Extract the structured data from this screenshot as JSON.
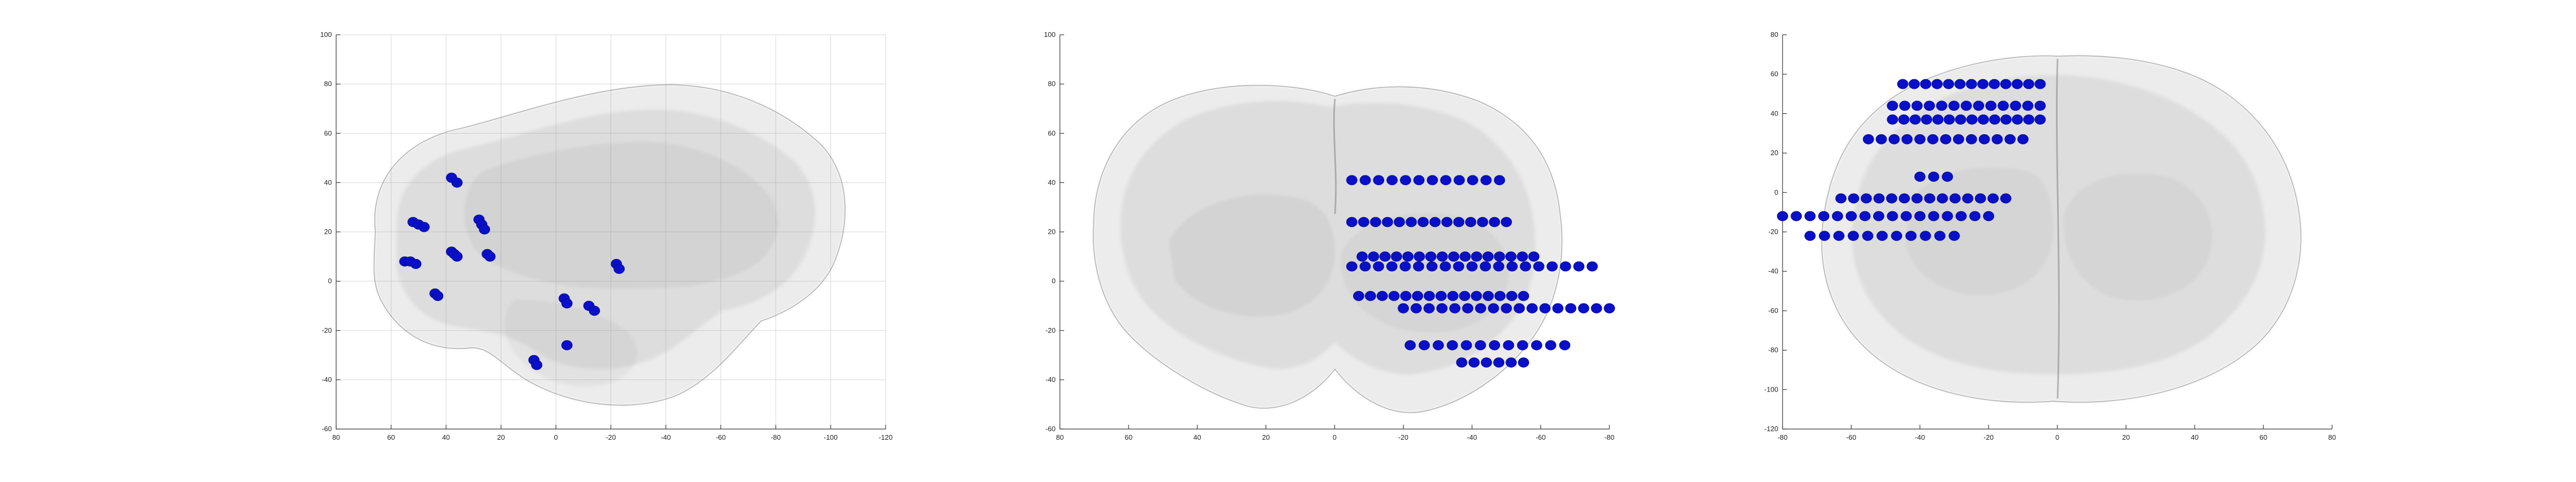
{
  "chart_data": [
    {
      "type": "scatter",
      "view": "sagittal",
      "title": "",
      "xlabel": "",
      "ylabel": "",
      "xlim": [
        80,
        -120
      ],
      "ylim": [
        -60,
        100
      ],
      "grid": true,
      "x_ticks": [
        "80",
        "60",
        "40",
        "20",
        "0",
        "-20",
        "-40",
        "-60",
        "-80",
        "-100",
        "-120"
      ],
      "y_ticks": [
        "100",
        "80",
        "60",
        "40",
        "20",
        "0",
        "-20",
        "-40",
        "-60"
      ],
      "marker_color": "#0a10c8",
      "background_color": "#a0a0a0",
      "points": [
        {
          "x": 38,
          "y": 42
        },
        {
          "x": 36,
          "y": 40
        },
        {
          "x": 52,
          "y": 24
        },
        {
          "x": 50,
          "y": 23
        },
        {
          "x": 48,
          "y": 22
        },
        {
          "x": 28,
          "y": 25
        },
        {
          "x": 27,
          "y": 23
        },
        {
          "x": 26,
          "y": 21
        },
        {
          "x": 55,
          "y": 8
        },
        {
          "x": 53,
          "y": 8
        },
        {
          "x": 51,
          "y": 7
        },
        {
          "x": 38,
          "y": 12
        },
        {
          "x": 37,
          "y": 11
        },
        {
          "x": 36,
          "y": 10
        },
        {
          "x": 25,
          "y": 11
        },
        {
          "x": 24,
          "y": 10
        },
        {
          "x": -22,
          "y": 7
        },
        {
          "x": -23,
          "y": 5
        },
        {
          "x": 44,
          "y": -5
        },
        {
          "x": 43,
          "y": -6
        },
        {
          "x": -3,
          "y": -7
        },
        {
          "x": -4,
          "y": -9
        },
        {
          "x": -12,
          "y": -10
        },
        {
          "x": -14,
          "y": -12
        },
        {
          "x": -4,
          "y": -26
        },
        {
          "x": 8,
          "y": -32
        },
        {
          "x": 7,
          "y": -34
        }
      ]
    },
    {
      "type": "scatter",
      "view": "coronal",
      "title": "",
      "xlabel": "",
      "ylabel": "",
      "xlim": [
        80,
        -80
      ],
      "ylim": [
        -60,
        100
      ],
      "grid": false,
      "x_ticks": [
        "80",
        "60",
        "40",
        "20",
        "0",
        "-20",
        "-40",
        "-60",
        "-80"
      ],
      "y_ticks": [
        "100",
        "80",
        "60",
        "40",
        "20",
        "0",
        "-20",
        "-40",
        "-60"
      ],
      "marker_color": "#0a10c8",
      "background_color": "#a0a0a0",
      "rows": [
        {
          "y": 41,
          "x_from": -5,
          "x_to": -48,
          "n": 12
        },
        {
          "y": 24,
          "x_from": -5,
          "x_to": -50,
          "n": 14
        },
        {
          "y": 10,
          "x_from": -8,
          "x_to": -58,
          "n": 16
        },
        {
          "y": 6,
          "x_from": -5,
          "x_to": -75,
          "n": 19
        },
        {
          "y": -6,
          "x_from": -7,
          "x_to": -55,
          "n": 15
        },
        {
          "y": -11,
          "x_from": -20,
          "x_to": -80,
          "n": 17
        },
        {
          "y": -26,
          "x_from": -22,
          "x_to": -67,
          "n": 12
        },
        {
          "y": -33,
          "x_from": -37,
          "x_to": -55,
          "n": 6
        }
      ]
    },
    {
      "type": "scatter",
      "view": "axial",
      "title": "",
      "xlabel": "",
      "ylabel": "",
      "xlim": [
        -80,
        80
      ],
      "ylim": [
        -120,
        80
      ],
      "grid": false,
      "x_ticks": [
        "-80",
        "-60",
        "-40",
        "-20",
        "0",
        "20",
        "40",
        "60",
        "80"
      ],
      "y_ticks": [
        "80",
        "60",
        "40",
        "20",
        "0",
        "-20",
        "-40",
        "-60",
        "-80",
        "-100",
        "-120"
      ],
      "marker_color": "#0a10c8",
      "background_color": "#a0a0a0",
      "rows": [
        {
          "y": 55,
          "x_from": -45,
          "x_to": -5,
          "n": 13
        },
        {
          "y": 44,
          "x_from": -48,
          "x_to": -5,
          "n": 13
        },
        {
          "y": 37,
          "x_from": -48,
          "x_to": -5,
          "n": 14
        },
        {
          "y": 27,
          "x_from": -55,
          "x_to": -10,
          "n": 13
        },
        {
          "y": 8,
          "x_from": -40,
          "x_to": -32,
          "n": 3
        },
        {
          "y": -3,
          "x_from": -63,
          "x_to": -15,
          "n": 14
        },
        {
          "y": -12,
          "x_from": -80,
          "x_to": -20,
          "n": 16
        },
        {
          "y": -22,
          "x_from": -72,
          "x_to": -30,
          "n": 11
        }
      ]
    }
  ]
}
